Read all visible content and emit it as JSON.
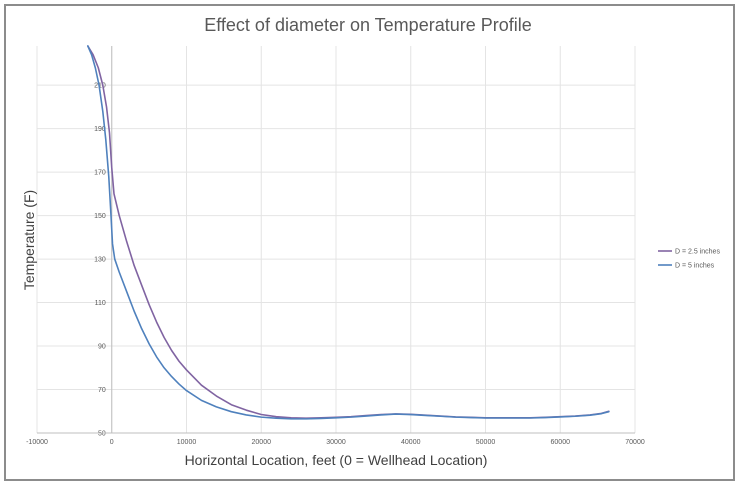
{
  "chart_data": {
    "type": "line",
    "title": "Effect of diameter on Temperature Profile",
    "xlabel": "Horizontal Location, feet (0 = Wellhead Location)",
    "ylabel": "Temperature (F)",
    "xlim": [
      -10000,
      70000
    ],
    "ylim": [
      50,
      228
    ],
    "xticks": [
      -10000,
      0,
      10000,
      20000,
      30000,
      40000,
      50000,
      60000,
      70000
    ],
    "xtick_labels": [
      "-10000",
      "0",
      "10000",
      "20000",
      "30000",
      "40000",
      "50000",
      "60000",
      "70000"
    ],
    "yticks": [
      50,
      70,
      90,
      110,
      130,
      150,
      170,
      190,
      210
    ],
    "ytick_labels": [
      "50",
      "70",
      "90",
      "110",
      "130",
      "150",
      "170",
      "190",
      "210"
    ],
    "grid": true,
    "legend_position": "right",
    "series": [
      {
        "name": "D = 2.5 inches",
        "color": "#8064a2",
        "points": [
          [
            -3200,
            228
          ],
          [
            -2500,
            224
          ],
          [
            -1800,
            218
          ],
          [
            -1200,
            210
          ],
          [
            -700,
            200
          ],
          [
            -300,
            188
          ],
          [
            0,
            172
          ],
          [
            300,
            160
          ],
          [
            1000,
            150
          ],
          [
            2000,
            138
          ],
          [
            3000,
            127
          ],
          [
            4000,
            118
          ],
          [
            5000,
            109
          ],
          [
            6000,
            101
          ],
          [
            7000,
            94
          ],
          [
            8000,
            88
          ],
          [
            9000,
            83
          ],
          [
            10000,
            79
          ],
          [
            12000,
            72
          ],
          [
            14000,
            67
          ],
          [
            16000,
            63
          ],
          [
            18000,
            60.5
          ],
          [
            20000,
            58.5
          ],
          [
            22000,
            57.5
          ],
          [
            24000,
            57
          ],
          [
            26000,
            56.8
          ],
          [
            28000,
            57
          ],
          [
            30000,
            57.2
          ],
          [
            32000,
            57.5
          ],
          [
            34000,
            58
          ],
          [
            36000,
            58.5
          ],
          [
            38000,
            58.8
          ],
          [
            40000,
            58.6
          ],
          [
            42000,
            58.2
          ],
          [
            44000,
            57.8
          ],
          [
            46000,
            57.4
          ],
          [
            48000,
            57.2
          ],
          [
            50000,
            57
          ],
          [
            52000,
            57
          ],
          [
            54000,
            57
          ],
          [
            56000,
            57
          ],
          [
            58000,
            57.2
          ],
          [
            60000,
            57.5
          ],
          [
            62000,
            57.8
          ],
          [
            64000,
            58.3
          ],
          [
            65500,
            59
          ],
          [
            66500,
            60
          ]
        ]
      },
      {
        "name": "D = 5 inches",
        "color": "#4f81bd",
        "points": [
          [
            -3200,
            228
          ],
          [
            -2700,
            224
          ],
          [
            -2200,
            218
          ],
          [
            -1700,
            210
          ],
          [
            -1200,
            198
          ],
          [
            -800,
            185
          ],
          [
            -400,
            168
          ],
          [
            -100,
            150
          ],
          [
            100,
            137
          ],
          [
            400,
            130
          ],
          [
            1000,
            124
          ],
          [
            2000,
            115
          ],
          [
            3000,
            106
          ],
          [
            4000,
            98
          ],
          [
            5000,
            91
          ],
          [
            6000,
            85
          ],
          [
            7000,
            80
          ],
          [
            8000,
            76
          ],
          [
            9000,
            72.5
          ],
          [
            10000,
            69.5
          ],
          [
            12000,
            65
          ],
          [
            14000,
            62
          ],
          [
            16000,
            59.8
          ],
          [
            18000,
            58.3
          ],
          [
            20000,
            57.3
          ],
          [
            22000,
            56.8
          ],
          [
            24000,
            56.5
          ],
          [
            26000,
            56.5
          ],
          [
            28000,
            56.7
          ],
          [
            30000,
            57
          ],
          [
            32000,
            57.3
          ],
          [
            34000,
            57.8
          ],
          [
            36000,
            58.3
          ],
          [
            38000,
            58.7
          ],
          [
            40000,
            58.5
          ],
          [
            42000,
            58.1
          ],
          [
            44000,
            57.7
          ],
          [
            46000,
            57.3
          ],
          [
            48000,
            57.1
          ],
          [
            50000,
            56.9
          ],
          [
            52000,
            56.9
          ],
          [
            54000,
            56.9
          ],
          [
            56000,
            56.9
          ],
          [
            58000,
            57.1
          ],
          [
            60000,
            57.4
          ],
          [
            62000,
            57.7
          ],
          [
            64000,
            58.2
          ],
          [
            65500,
            58.9
          ],
          [
            66500,
            59.8
          ]
        ]
      }
    ]
  }
}
